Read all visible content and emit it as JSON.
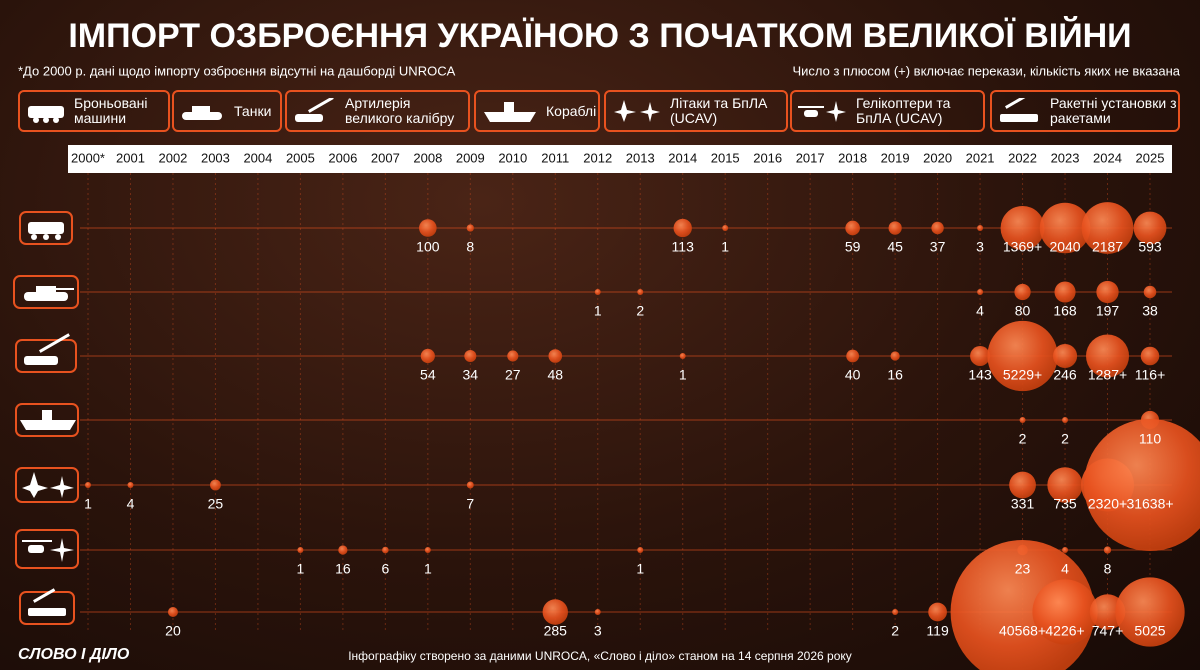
{
  "chart_data": {
    "type": "bubble",
    "title": "ІМПОРТ ОЗБРОЄННЯ УКРАЇНОЮ З ПОЧАТКОМ ВЕЛИКОЇ ВІЙНИ",
    "note": "*До 2000 р. дані щодо імпорту озброєння відсутні на дашборді UNROCA",
    "note_plus": "Число з плюсом (+) включає перекази, кількість яких не вказана",
    "source": "Інфографіку створено за даними UNROCA, «Слово і діло» станом на 14 серпня 2026 року",
    "logo": "СЛОВО І ДІЛО",
    "color": "#e8521f",
    "categories": [
      "2000*",
      "2001",
      "2002",
      "2003",
      "2004",
      "2005",
      "2006",
      "2007",
      "2008",
      "2009",
      "2010",
      "2011",
      "2012",
      "2013",
      "2014",
      "2015",
      "2016",
      "2017",
      "2018",
      "2019",
      "2020",
      "2021",
      "2022",
      "2023",
      "2024",
      "2025"
    ],
    "series": [
      {
        "name": "Броньовані машини",
        "values": [
          null,
          null,
          null,
          null,
          null,
          null,
          null,
          null,
          100,
          8,
          null,
          null,
          null,
          null,
          113,
          1,
          null,
          null,
          59,
          45,
          37,
          3,
          1369,
          2040,
          2187,
          593
        ],
        "value_labels": [
          null,
          null,
          null,
          null,
          null,
          null,
          null,
          null,
          null,
          null,
          null,
          null,
          null,
          null,
          null,
          null,
          null,
          null,
          null,
          null,
          null,
          null,
          "1369+",
          null,
          null,
          null
        ]
      },
      {
        "name": "Танки",
        "values": [
          null,
          null,
          null,
          null,
          null,
          null,
          null,
          null,
          null,
          null,
          null,
          null,
          1,
          2,
          null,
          null,
          null,
          null,
          null,
          null,
          null,
          4,
          80,
          168,
          197,
          38
        ]
      },
      {
        "name": "Артилерія великого калібру",
        "values": [
          null,
          null,
          null,
          null,
          null,
          null,
          null,
          null,
          54,
          34,
          27,
          48,
          null,
          null,
          1,
          null,
          null,
          null,
          40,
          16,
          null,
          143,
          5229,
          246,
          1287,
          116
        ],
        "value_labels": [
          null,
          null,
          null,
          null,
          null,
          null,
          null,
          null,
          null,
          null,
          null,
          null,
          null,
          null,
          null,
          null,
          null,
          null,
          null,
          null,
          null,
          null,
          "5229+",
          null,
          "1287+",
          "116+"
        ]
      },
      {
        "name": "Кораблі",
        "values": [
          null,
          null,
          null,
          null,
          null,
          null,
          null,
          null,
          null,
          null,
          null,
          null,
          null,
          null,
          null,
          null,
          null,
          null,
          null,
          null,
          null,
          null,
          2,
          2,
          null,
          110
        ]
      },
      {
        "name": "Літаки та БпЛА (UCAV)",
        "values": [
          1,
          4,
          null,
          25,
          null,
          null,
          null,
          null,
          null,
          7,
          null,
          null,
          null,
          null,
          null,
          null,
          null,
          null,
          null,
          null,
          null,
          null,
          331,
          735,
          2320,
          31638
        ],
        "value_labels": [
          null,
          null,
          null,
          null,
          null,
          null,
          null,
          null,
          null,
          null,
          null,
          null,
          null,
          null,
          null,
          null,
          null,
          null,
          null,
          null,
          null,
          null,
          null,
          null,
          "2320+",
          "31638+"
        ]
      },
      {
        "name": "Гелікоптери та БпЛА (UCAV)",
        "values": [
          null,
          null,
          null,
          null,
          null,
          1,
          16,
          6,
          1,
          null,
          null,
          null,
          null,
          1,
          null,
          null,
          null,
          null,
          null,
          null,
          null,
          null,
          23,
          4,
          8,
          null
        ]
      },
      {
        "name": "Ракетні установки з ракетами",
        "values": [
          null,
          null,
          20,
          null,
          null,
          null,
          null,
          null,
          null,
          null,
          null,
          285,
          3,
          null,
          null,
          null,
          null,
          null,
          null,
          2,
          119,
          null,
          40568,
          4226,
          747,
          5025
        ],
        "value_labels": [
          null,
          null,
          null,
          null,
          null,
          null,
          null,
          null,
          null,
          null,
          null,
          null,
          null,
          null,
          null,
          null,
          null,
          null,
          null,
          null,
          null,
          null,
          "40568+",
          "4226+",
          "747+",
          null
        ]
      }
    ]
  }
}
